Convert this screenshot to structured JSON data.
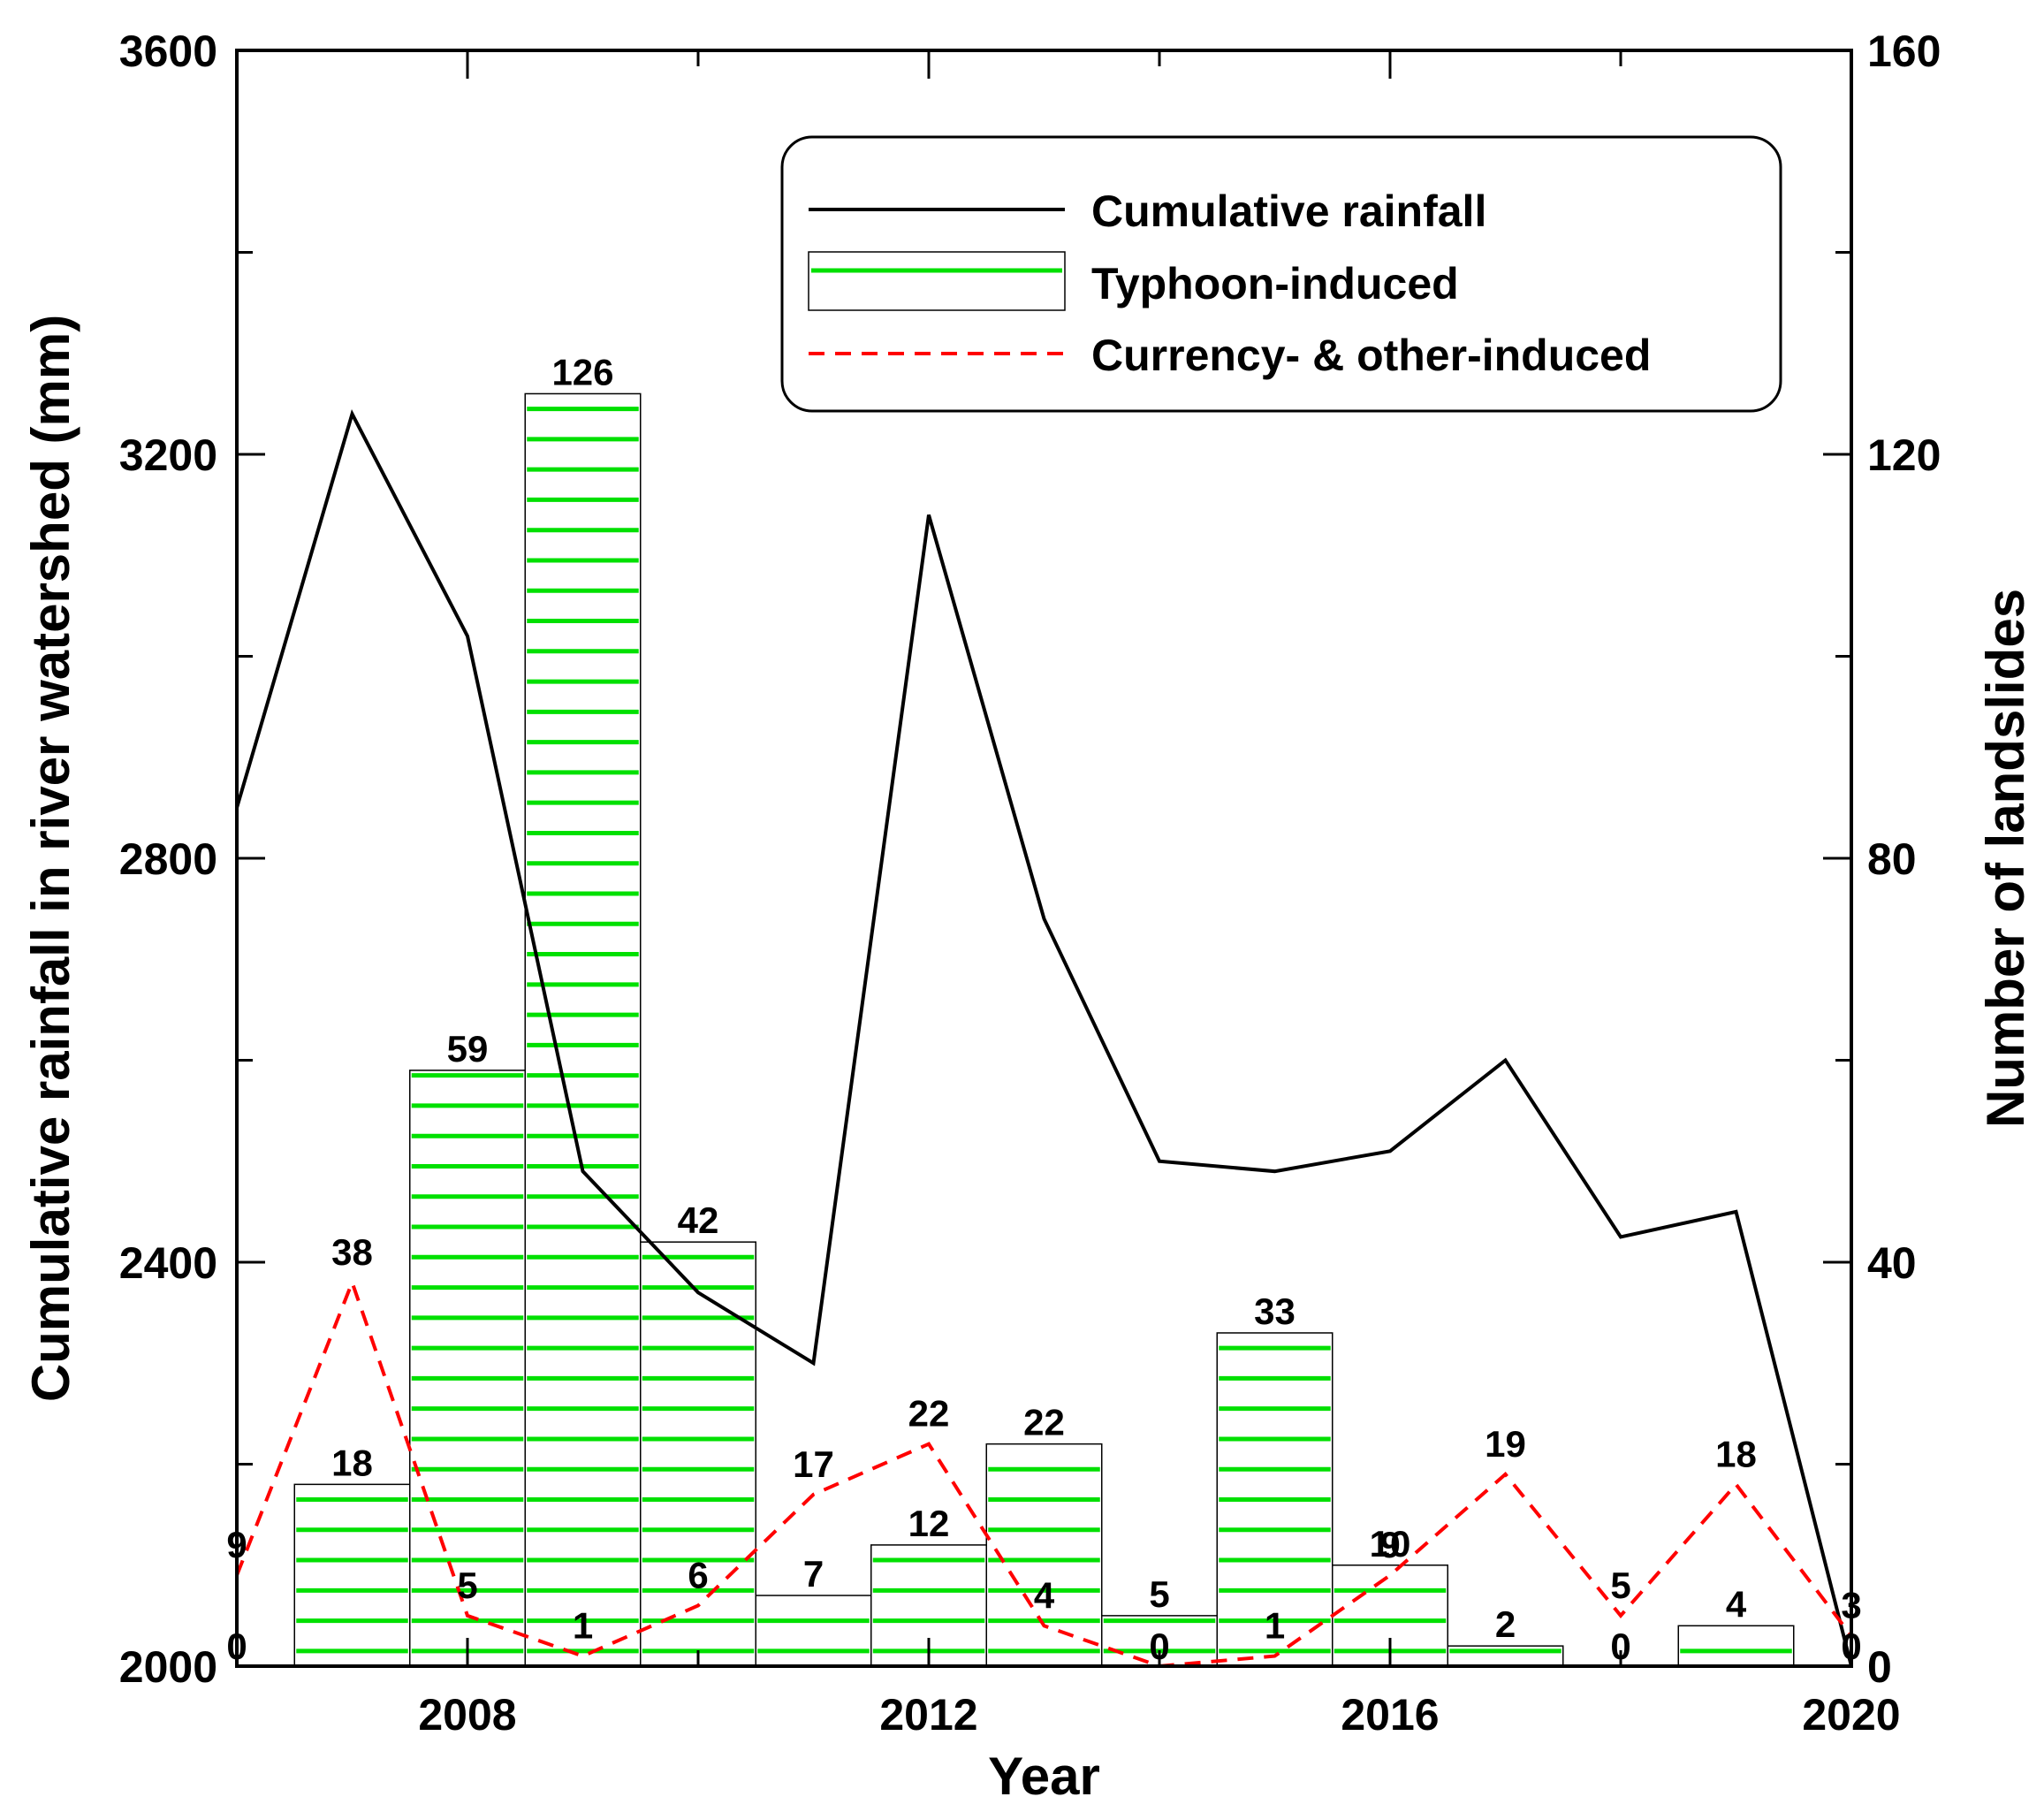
{
  "chart_data": {
    "type": "bar+line",
    "x_axis": {
      "title": "Year",
      "range": [
        2006,
        2020
      ],
      "ticks": [
        2008,
        2012,
        2016,
        2020
      ]
    },
    "y_left": {
      "title": "Cumulative rainfall in river watershed (mm)",
      "range": [
        2000,
        3600
      ],
      "ticks": [
        2000,
        2400,
        2800,
        3200,
        3600
      ]
    },
    "y_right": {
      "title": "Number of landslides",
      "range": [
        0,
        160
      ],
      "ticks": [
        0,
        40,
        80,
        120,
        160
      ]
    },
    "legend": {
      "position": "top-right",
      "entries": [
        "Cumulative rainfall",
        "Typhoon-induced",
        "Currency- & other-induced"
      ]
    },
    "years": [
      2006,
      2007,
      2008,
      2009,
      2010,
      2011,
      2012,
      2013,
      2014,
      2015,
      2016,
      2017,
      2018,
      2019,
      2020
    ],
    "series": [
      {
        "name": "Cumulative rainfall",
        "type": "line",
        "axis": "left",
        "color": "#000000",
        "values": [
          2850,
          3240,
          3020,
          2490,
          2370,
          2300,
          3140,
          2740,
          2500,
          2490,
          2510,
          2600,
          2425,
          2450,
          2000
        ]
      },
      {
        "name": "Typhoon-induced",
        "type": "bar",
        "axis": "right",
        "color": "#00e000",
        "values": [
          0,
          18,
          59,
          126,
          42,
          7,
          12,
          22,
          5,
          33,
          10,
          2,
          0,
          4,
          0
        ],
        "labels": [
          "0",
          "18",
          "59",
          "126",
          "42",
          "7",
          "12",
          "22",
          "5",
          "33",
          "10",
          "2",
          "0",
          "4",
          "0"
        ]
      },
      {
        "name": "Currency- & other-induced",
        "type": "line",
        "axis": "right",
        "color": "#ff0000",
        "dashed": true,
        "values": [
          9,
          38,
          5,
          1,
          6,
          17,
          22,
          4,
          0,
          1,
          9,
          19,
          5,
          18,
          3
        ],
        "labels": [
          "9",
          "38",
          "5",
          "1",
          "6",
          "17",
          "22",
          "4",
          "0",
          "1",
          "9",
          "19",
          "5",
          "18",
          "3"
        ]
      }
    ]
  }
}
